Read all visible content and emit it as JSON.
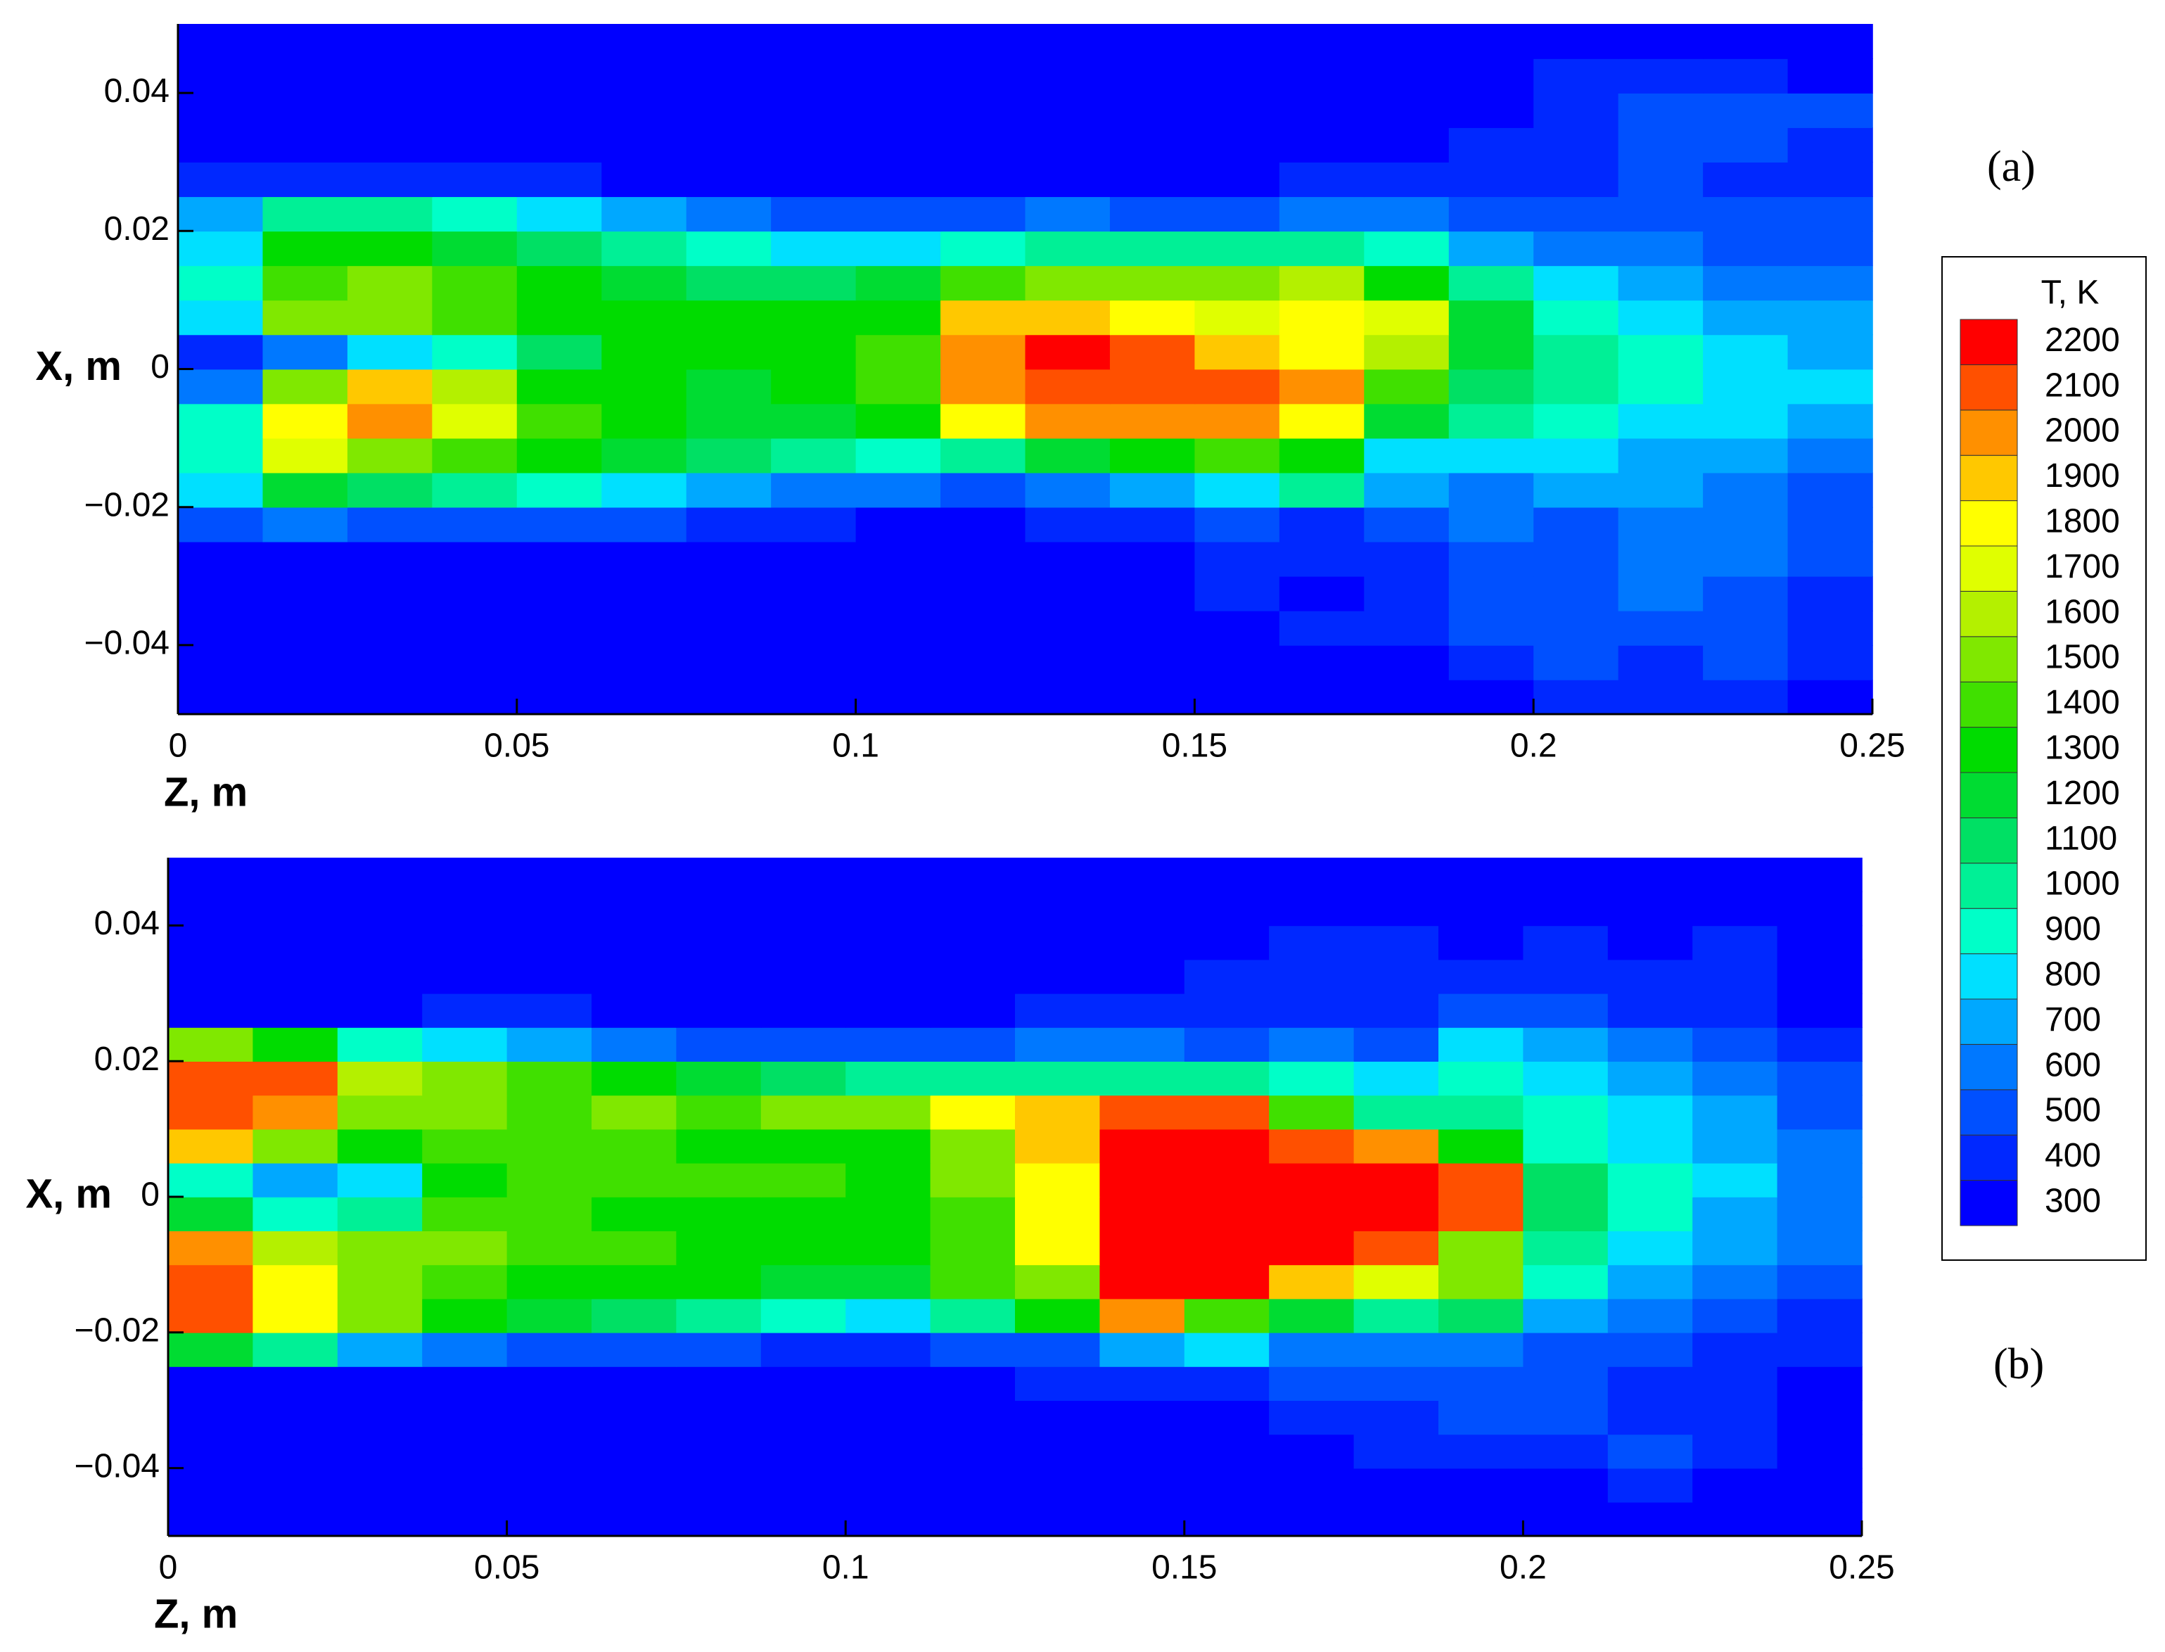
{
  "chart_data": [
    {
      "type": "contour",
      "panel_label": "(a)",
      "xlabel": "Z, m",
      "ylabel": "X, m",
      "xlim": [
        0,
        0.25
      ],
      "ylim": [
        -0.05,
        0.05
      ],
      "xticks": [
        0,
        0.05,
        0.1,
        0.15,
        0.2,
        0.25
      ],
      "yticks": [
        {
          "value": -0.04,
          "label": "−0.04"
        },
        {
          "value": -0.02,
          "label": "−0.02"
        },
        0,
        0.02,
        0.04
      ],
      "zbins": [
        0,
        0.0125,
        0.025,
        0.0375,
        0.05,
        0.0625,
        0.075,
        0.0875,
        0.1,
        0.1125,
        0.125,
        0.1375,
        0.15,
        0.1625,
        0.175,
        0.1875,
        0.2,
        0.2125,
        0.225,
        0.2375,
        0.25
      ],
      "xbins": [
        -0.05,
        -0.045,
        -0.04,
        -0.035,
        -0.03,
        -0.025,
        -0.02,
        -0.015,
        -0.01,
        -0.005,
        0,
        0.005,
        0.01,
        0.015,
        0.02,
        0.025,
        0.03,
        0.035,
        0.04,
        0.045,
        0.05
      ],
      "values": [
        [
          300,
          300,
          300,
          300,
          300,
          300,
          300,
          300,
          300,
          300,
          300,
          300,
          300,
          300,
          300,
          300,
          400,
          400,
          400,
          300
        ],
        [
          300,
          300,
          300,
          300,
          300,
          300,
          300,
          300,
          300,
          300,
          300,
          300,
          300,
          300,
          300,
          400,
          500,
          400,
          500,
          400
        ],
        [
          300,
          300,
          300,
          300,
          300,
          300,
          300,
          300,
          300,
          300,
          300,
          300,
          300,
          400,
          400,
          500,
          500,
          500,
          500,
          400
        ],
        [
          300,
          300,
          300,
          300,
          300,
          300,
          300,
          300,
          300,
          300,
          300,
          300,
          400,
          300,
          400,
          500,
          500,
          600,
          500,
          400
        ],
        [
          300,
          300,
          300,
          300,
          300,
          300,
          300,
          300,
          300,
          300,
          300,
          300,
          400,
          400,
          400,
          500,
          500,
          600,
          600,
          500
        ],
        [
          500,
          600,
          500,
          500,
          500,
          500,
          400,
          400,
          300,
          300,
          400,
          400,
          500,
          400,
          500,
          600,
          500,
          600,
          600,
          500
        ],
        [
          800,
          1200,
          1100,
          1000,
          900,
          800,
          700,
          600,
          600,
          500,
          600,
          700,
          800,
          1000,
          700,
          600,
          700,
          700,
          600,
          500
        ],
        [
          900,
          1700,
          1500,
          1400,
          1300,
          1200,
          1100,
          1000,
          900,
          1000,
          1200,
          1300,
          1400,
          1300,
          800,
          800,
          800,
          700,
          700,
          600
        ],
        [
          900,
          1800,
          2000,
          1700,
          1400,
          1300,
          1200,
          1200,
          1300,
          1800,
          2000,
          2000,
          2000,
          1800,
          1200,
          1000,
          900,
          800,
          800,
          700
        ],
        [
          600,
          1500,
          1900,
          1600,
          1300,
          1300,
          1200,
          1300,
          1400,
          2000,
          2100,
          2100,
          2100,
          2000,
          1400,
          1100,
          1000,
          900,
          800,
          800
        ],
        [
          400,
          600,
          800,
          900,
          1100,
          1300,
          1300,
          1300,
          1400,
          2000,
          2200,
          2100,
          1900,
          1800,
          1600,
          1200,
          1000,
          900,
          800,
          700
        ],
        [
          800,
          1500,
          1500,
          1400,
          1300,
          1300,
          1300,
          1300,
          1300,
          1900,
          1900,
          1800,
          1700,
          1800,
          1700,
          1200,
          900,
          800,
          700,
          700
        ],
        [
          900,
          1400,
          1500,
          1400,
          1300,
          1200,
          1100,
          1100,
          1200,
          1400,
          1500,
          1500,
          1500,
          1600,
          1300,
          1000,
          800,
          700,
          600,
          600
        ],
        [
          800,
          1300,
          1300,
          1200,
          1100,
          1000,
          900,
          800,
          800,
          900,
          1000,
          1000,
          1000,
          1000,
          900,
          700,
          600,
          600,
          500,
          500
        ],
        [
          700,
          1000,
          1000,
          900,
          800,
          700,
          600,
          500,
          500,
          500,
          600,
          500,
          500,
          600,
          600,
          500,
          500,
          500,
          500,
          500
        ],
        [
          400,
          400,
          400,
          400,
          400,
          300,
          300,
          300,
          300,
          300,
          300,
          300,
          300,
          400,
          400,
          400,
          400,
          500,
          400,
          400
        ],
        [
          300,
          300,
          300,
          300,
          300,
          300,
          300,
          300,
          300,
          300,
          300,
          300,
          300,
          300,
          300,
          400,
          400,
          500,
          500,
          400
        ],
        [
          300,
          300,
          300,
          300,
          300,
          300,
          300,
          300,
          300,
          300,
          300,
          300,
          300,
          300,
          300,
          300,
          400,
          500,
          500,
          500
        ],
        [
          300,
          300,
          300,
          300,
          300,
          300,
          300,
          300,
          300,
          300,
          300,
          300,
          300,
          300,
          300,
          300,
          400,
          400,
          400,
          300
        ],
        [
          300,
          300,
          300,
          300,
          300,
          300,
          300,
          300,
          300,
          300,
          300,
          300,
          300,
          300,
          300,
          300,
          300,
          300,
          300,
          300
        ]
      ]
    },
    {
      "type": "contour",
      "panel_label": "(b)",
      "xlabel": "Z, m",
      "ylabel": "X, m",
      "xlim": [
        0,
        0.25
      ],
      "ylim": [
        -0.05,
        0.05
      ],
      "xticks": [
        0,
        0.05,
        0.1,
        0.15,
        0.2,
        0.25
      ],
      "yticks": [
        {
          "value": -0.04,
          "label": "−0.04"
        },
        {
          "value": -0.02,
          "label": "−0.02"
        },
        0,
        0.02,
        0.04
      ],
      "zbins": [
        0,
        0.0125,
        0.025,
        0.0375,
        0.05,
        0.0625,
        0.075,
        0.0875,
        0.1,
        0.1125,
        0.125,
        0.1375,
        0.15,
        0.1625,
        0.175,
        0.1875,
        0.2,
        0.2125,
        0.225,
        0.2375,
        0.25
      ],
      "xbins": [
        -0.05,
        -0.045,
        -0.04,
        -0.035,
        -0.03,
        -0.025,
        -0.02,
        -0.015,
        -0.01,
        -0.005,
        0,
        0.005,
        0.01,
        0.015,
        0.02,
        0.025,
        0.03,
        0.035,
        0.04,
        0.045,
        0.05
      ],
      "values": [
        [
          300,
          300,
          300,
          300,
          300,
          300,
          300,
          300,
          300,
          300,
          300,
          300,
          300,
          300,
          300,
          300,
          300,
          300,
          300,
          300
        ],
        [
          300,
          300,
          300,
          300,
          300,
          300,
          300,
          300,
          300,
          300,
          300,
          300,
          300,
          300,
          300,
          300,
          300,
          400,
          300,
          300
        ],
        [
          300,
          300,
          300,
          300,
          300,
          300,
          300,
          300,
          300,
          300,
          300,
          300,
          300,
          300,
          400,
          400,
          400,
          500,
          400,
          300
        ],
        [
          300,
          300,
          300,
          300,
          300,
          300,
          300,
          300,
          300,
          300,
          300,
          300,
          300,
          400,
          400,
          500,
          500,
          400,
          400,
          300
        ],
        [
          300,
          300,
          300,
          300,
          300,
          300,
          300,
          300,
          300,
          300,
          400,
          400,
          400,
          500,
          500,
          500,
          500,
          400,
          400,
          300
        ],
        [
          1200,
          1000,
          700,
          600,
          500,
          500,
          500,
          400,
          400,
          500,
          500,
          700,
          800,
          600,
          600,
          600,
          500,
          500,
          400,
          400
        ],
        [
          2100,
          1800,
          1500,
          1300,
          1200,
          1100,
          1000,
          900,
          800,
          1000,
          1300,
          2000,
          1400,
          1200,
          1000,
          1100,
          700,
          600,
          500,
          400
        ],
        [
          2100,
          1800,
          1500,
          1400,
          1300,
          1300,
          1300,
          1200,
          1200,
          1400,
          1500,
          2200,
          2200,
          1900,
          1700,
          1500,
          900,
          700,
          600,
          500
        ],
        [
          2000,
          1600,
          1500,
          1500,
          1400,
          1400,
          1300,
          1300,
          1300,
          1400,
          1800,
          2200,
          2200,
          2200,
          2100,
          1500,
          1000,
          800,
          700,
          600
        ],
        [
          1200,
          900,
          1000,
          1400,
          1400,
          1300,
          1300,
          1300,
          1300,
          1400,
          1800,
          2200,
          2200,
          2200,
          2200,
          2100,
          1100,
          900,
          700,
          600
        ],
        [
          900,
          700,
          800,
          1300,
          1400,
          1400,
          1400,
          1400,
          1300,
          1500,
          1800,
          2200,
          2200,
          2200,
          2200,
          2100,
          1100,
          900,
          800,
          600
        ],
        [
          1900,
          1500,
          1300,
          1400,
          1400,
          1400,
          1300,
          1300,
          1300,
          1500,
          1900,
          2200,
          2200,
          2100,
          2000,
          1300,
          900,
          800,
          700,
          600
        ],
        [
          2100,
          2000,
          1500,
          1500,
          1400,
          1500,
          1400,
          1500,
          1500,
          1800,
          1900,
          2100,
          2100,
          1400,
          1000,
          1000,
          900,
          800,
          700,
          500
        ],
        [
          2100,
          2100,
          1600,
          1500,
          1400,
          1300,
          1200,
          1100,
          1000,
          1000,
          1000,
          1000,
          1000,
          900,
          800,
          900,
          800,
          700,
          600,
          500
        ],
        [
          1500,
          1300,
          900,
          800,
          700,
          600,
          500,
          500,
          500,
          500,
          600,
          600,
          500,
          600,
          500,
          800,
          700,
          600,
          500,
          400
        ],
        [
          300,
          300,
          300,
          400,
          400,
          300,
          300,
          300,
          300,
          300,
          400,
          400,
          400,
          400,
          400,
          500,
          500,
          400,
          400,
          300
        ],
        [
          300,
          300,
          300,
          300,
          300,
          300,
          300,
          300,
          300,
          300,
          300,
          300,
          400,
          400,
          400,
          400,
          400,
          400,
          400,
          300
        ],
        [
          300,
          300,
          300,
          300,
          300,
          300,
          300,
          300,
          300,
          300,
          300,
          300,
          300,
          400,
          400,
          300,
          400,
          300,
          400,
          300
        ],
        [
          300,
          300,
          300,
          300,
          300,
          300,
          300,
          300,
          300,
          300,
          300,
          300,
          300,
          300,
          300,
          300,
          300,
          300,
          300,
          300
        ],
        [
          300,
          300,
          300,
          300,
          300,
          300,
          300,
          300,
          300,
          300,
          300,
          300,
          300,
          300,
          300,
          300,
          300,
          300,
          300,
          300
        ]
      ]
    }
  ],
  "colorbar": {
    "title": "T, K",
    "levels": [
      300,
      400,
      500,
      600,
      700,
      800,
      900,
      1000,
      1100,
      1200,
      1300,
      1400,
      1500,
      1600,
      1700,
      1800,
      1900,
      2000,
      2100,
      2200
    ],
    "colors": [
      "#0000ff",
      "#0028ff",
      "#0050ff",
      "#0078ff",
      "#00a8ff",
      "#00e0ff",
      "#00ffc8",
      "#00f096",
      "#00e064",
      "#00dc32",
      "#00dc00",
      "#40e000",
      "#80e800",
      "#b4f000",
      "#e0ff00",
      "#ffff00",
      "#ffc800",
      "#ff9000",
      "#ff5000",
      "#ff0000"
    ]
  }
}
